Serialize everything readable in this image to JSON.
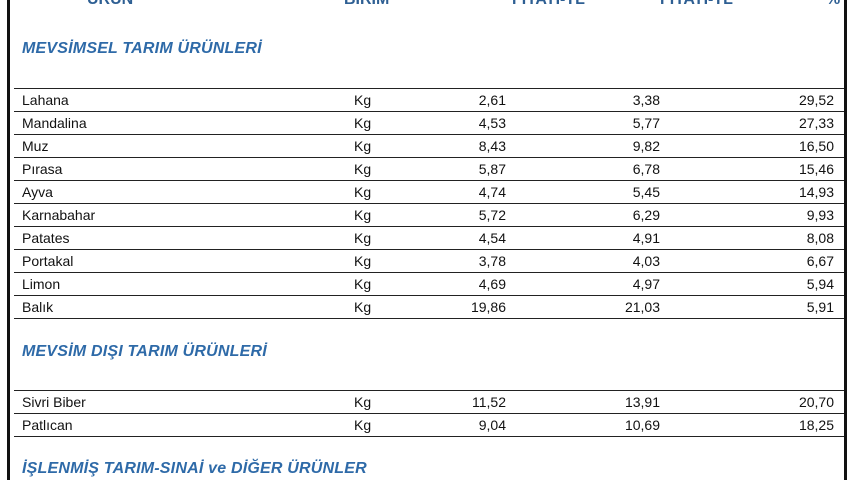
{
  "header": {
    "col_product": "ÜRÜN",
    "col_unit": "BİRİM",
    "col_old_price": "FİYATI-TL",
    "col_new_price": "FİYATI-TL",
    "col_pct": "%"
  },
  "sections": [
    {
      "title": "MEVSİMSEL TARIM ÜRÜNLERİ",
      "rows": [
        {
          "name": "Lahana",
          "unit": "Kg",
          "old": "2,61",
          "new": "3,38",
          "pct": "29,52"
        },
        {
          "name": "Mandalina",
          "unit": "Kg",
          "old": "4,53",
          "new": "5,77",
          "pct": "27,33"
        },
        {
          "name": "Muz",
          "unit": "Kg",
          "old": "8,43",
          "new": "9,82",
          "pct": "16,50"
        },
        {
          "name": "Pırasa",
          "unit": "Kg",
          "old": "5,87",
          "new": "6,78",
          "pct": "15,46"
        },
        {
          "name": "Ayva",
          "unit": "Kg",
          "old": "4,74",
          "new": "5,45",
          "pct": "14,93"
        },
        {
          "name": "Karnabahar",
          "unit": "Kg",
          "old": "5,72",
          "new": "6,29",
          "pct": "9,93"
        },
        {
          "name": "Patates",
          "unit": "Kg",
          "old": "4,54",
          "new": "4,91",
          "pct": "8,08"
        },
        {
          "name": "Portakal",
          "unit": "Kg",
          "old": "3,78",
          "new": "4,03",
          "pct": "6,67"
        },
        {
          "name": "Limon",
          "unit": "Kg",
          "old": "4,69",
          "new": "4,97",
          "pct": "5,94"
        },
        {
          "name": "Balık",
          "unit": "Kg",
          "old": "19,86",
          "new": "21,03",
          "pct": "5,91"
        }
      ]
    },
    {
      "title": "MEVSİM DIŞI TARIM ÜRÜNLERİ",
      "rows": [
        {
          "name": "Sivri Biber",
          "unit": "Kg",
          "old": "11,52",
          "new": "13,91",
          "pct": "20,70"
        },
        {
          "name": "Patlıcan",
          "unit": "Kg",
          "old": "9,04",
          "new": "10,69",
          "pct": "18,25"
        }
      ]
    },
    {
      "title": "İŞLENMİŞ TARIM-SINAİ ve DİĞER ÜRÜNLER",
      "rows": []
    }
  ]
}
